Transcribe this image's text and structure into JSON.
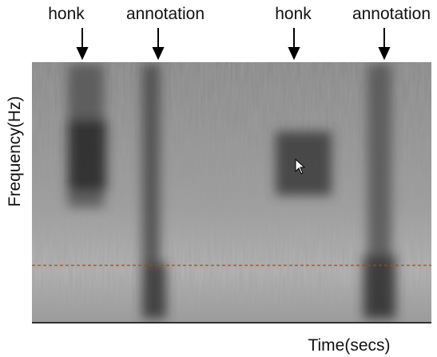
{
  "annotations": [
    "honk",
    "annotation",
    "honk",
    "annotation"
  ],
  "x_axis_label": "Time(secs)",
  "y_axis_label": "Frequency(Hz)"
}
